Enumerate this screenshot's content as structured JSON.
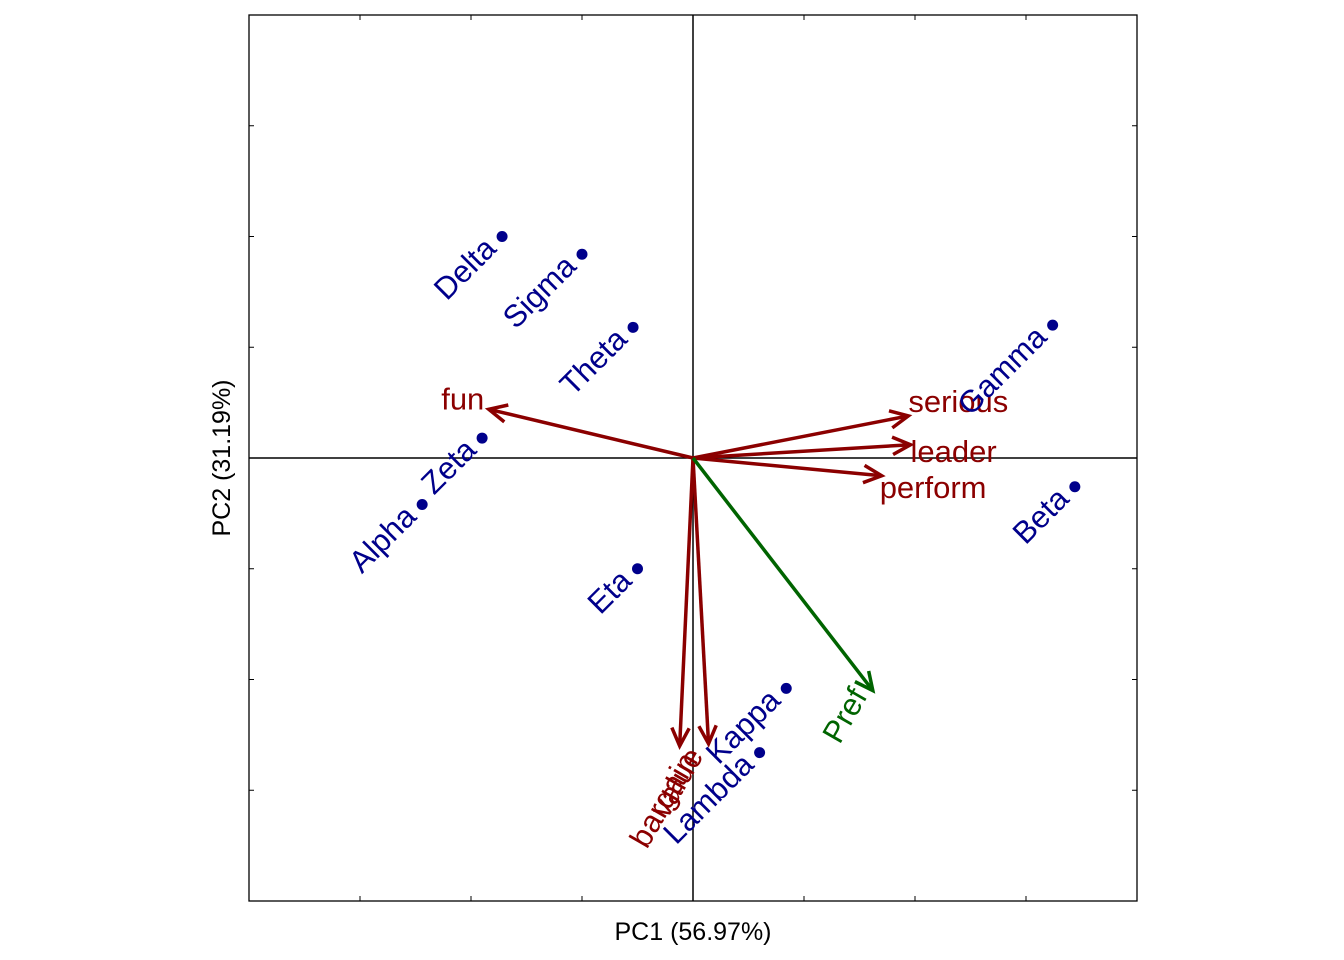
{
  "chart_data": {
    "type": "scatter",
    "subtype": "biplot",
    "title": "",
    "xlabel": "PC1 (56.97%)",
    "ylabel": "PC2 (31.19%)",
    "xlim": [
      -1,
      1
    ],
    "ylim": [
      -1,
      1
    ],
    "grid": false,
    "axis_lines_at_zero": true,
    "colors": {
      "points": "#00008B",
      "attributes": "#8B0000",
      "preference": "#006400",
      "frame": "#000000"
    },
    "points": [
      {
        "label": "Delta",
        "x": -0.43,
        "y": 0.5
      },
      {
        "label": "Sigma",
        "x": -0.25,
        "y": 0.46
      },
      {
        "label": "Theta",
        "x": -0.135,
        "y": 0.295
      },
      {
        "label": "Zeta",
        "x": -0.475,
        "y": 0.045
      },
      {
        "label": "Alpha",
        "x": -0.61,
        "y": -0.105
      },
      {
        "label": "Eta",
        "x": -0.125,
        "y": -0.25
      },
      {
        "label": "Gamma",
        "x": 0.81,
        "y": 0.3
      },
      {
        "label": "Beta",
        "x": 0.86,
        "y": -0.065
      },
      {
        "label": "Kappa",
        "x": 0.21,
        "y": -0.52
      },
      {
        "label": "Lambda",
        "x": 0.15,
        "y": -0.665
      }
    ],
    "vectors": [
      {
        "label": "fun",
        "x": -0.46,
        "y": 0.11,
        "group": "attribute"
      },
      {
        "label": "serious",
        "x": 0.485,
        "y": 0.095,
        "group": "attribute"
      },
      {
        "label": "leader",
        "x": 0.49,
        "y": 0.03,
        "group": "attribute"
      },
      {
        "label": "perform",
        "x": 0.425,
        "y": -0.04,
        "group": "attribute"
      },
      {
        "label": "bargain",
        "x": -0.03,
        "y": -0.65,
        "group": "attribute"
      },
      {
        "label": "value",
        "x": 0.035,
        "y": -0.645,
        "group": "attribute"
      },
      {
        "label": "Pref",
        "x": 0.405,
        "y": -0.525,
        "group": "preference"
      }
    ]
  }
}
